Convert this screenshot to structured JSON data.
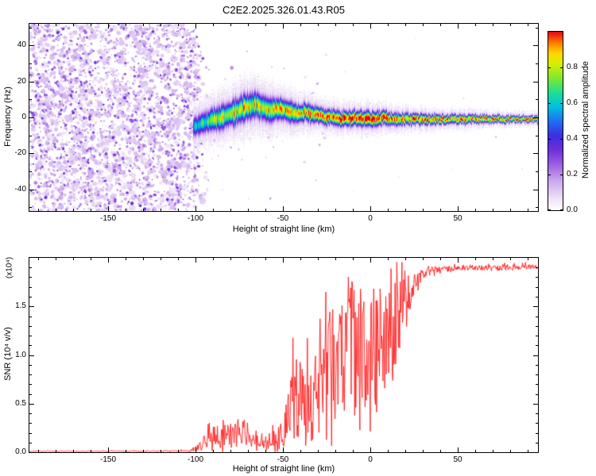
{
  "chart_data": [
    {
      "type": "heatmap",
      "name": "spectrogram",
      "title": "C2E2.2025.326.01.43.R05",
      "xlabel": "Height of straight line (km)",
      "ylabel": "Frequency (Hz)",
      "xlim": [
        -195,
        96
      ],
      "ylim": [
        -52,
        52
      ],
      "xticks": {
        "values": [
          -150,
          -100,
          -50,
          0,
          50
        ],
        "labels": [
          "-150",
          "-100",
          "-50",
          "0",
          "50"
        ]
      },
      "yticks": {
        "values": [
          -40,
          -20,
          0,
          20,
          40
        ],
        "labels": [
          "-40",
          "-20",
          "0",
          "20",
          "40"
        ]
      },
      "xminor": 10,
      "yminor": 10,
      "grid": false,
      "colorbar": {
        "label": "Normalized spectral amplitude",
        "range": [
          0,
          1
        ],
        "ticks": [
          {
            "v": 0.0,
            "label": "0.0"
          },
          {
            "v": 0.2,
            "label": "0.2"
          },
          {
            "v": 0.4,
            "label": "0.4"
          },
          {
            "v": 0.6,
            "label": "0.6"
          },
          {
            "v": 0.8,
            "label": "0.8"
          }
        ]
      },
      "colormap": [
        {
          "t": 0.0,
          "c": "#ffffff"
        },
        {
          "t": 0.06,
          "c": "#efe4f8"
        },
        {
          "t": 0.16,
          "c": "#cda9ee"
        },
        {
          "t": 0.26,
          "c": "#9a5ce2"
        },
        {
          "t": 0.34,
          "c": "#6a2fd8"
        },
        {
          "t": 0.42,
          "c": "#3b2fe0"
        },
        {
          "t": 0.5,
          "c": "#2070f0"
        },
        {
          "t": 0.58,
          "c": "#00c0e0"
        },
        {
          "t": 0.66,
          "c": "#20df90"
        },
        {
          "t": 0.74,
          "c": "#80e830"
        },
        {
          "t": 0.82,
          "c": "#d8ee00"
        },
        {
          "t": 0.88,
          "c": "#ffd800"
        },
        {
          "t": 0.94,
          "c": "#ff7800"
        },
        {
          "t": 1.0,
          "c": "#e30613"
        }
      ],
      "noise_region": {
        "x_start": -195,
        "x_end": -100,
        "amp_range": [
          0.04,
          0.35
        ]
      },
      "signal_band": {
        "x": [
          -102,
          -97,
          -93,
          -89,
          -85,
          -81,
          -77,
          -73,
          -69,
          -65,
          -61,
          -57,
          -53,
          -49,
          -45,
          -41,
          -37,
          -33,
          -29,
          -25,
          -21,
          -17,
          -13,
          -9,
          -5,
          -1,
          3,
          7,
          11,
          15,
          20,
          30,
          40,
          50,
          60,
          70,
          80,
          90,
          96
        ],
        "center_hz": [
          -6,
          -4,
          -2,
          -1,
          0,
          2,
          3,
          5,
          6,
          7,
          5,
          4,
          5,
          4,
          3,
          2,
          3,
          2,
          1,
          0,
          0,
          -1,
          -1,
          0,
          -1,
          -1,
          -1,
          0,
          -1,
          -1,
          -1,
          -1,
          -1,
          -1,
          -1,
          -1,
          -1,
          -1,
          -1
        ],
        "width_hz": [
          7,
          7,
          7,
          8,
          8,
          8,
          9,
          9,
          9,
          8,
          8,
          8,
          7,
          7,
          7,
          6,
          6,
          6,
          5,
          5,
          5,
          5,
          5,
          5,
          5,
          5,
          5,
          4.5,
          4.5,
          4,
          4,
          3.5,
          3.2,
          3,
          2.8,
          2.6,
          2.4,
          2.2,
          2.2
        ],
        "peak_amp": [
          0.55,
          0.65,
          0.7,
          0.75,
          0.8,
          0.8,
          0.85,
          0.85,
          0.85,
          0.85,
          0.8,
          0.85,
          0.85,
          0.9,
          0.9,
          0.9,
          0.9,
          0.95,
          0.95,
          1.0,
          1.0,
          1.0,
          1.05,
          1.0,
          1.05,
          1.0,
          1.05,
          1.0,
          1.0,
          0.95,
          0.95,
          0.95,
          0.92,
          0.92,
          0.9,
          0.9,
          0.9,
          0.9,
          0.9
        ]
      }
    },
    {
      "type": "line",
      "name": "snr",
      "xlabel": "Height of straight line (km)",
      "ylabel": "SNR (10⁴ v/v)",
      "scale_note": "(x10⁴)",
      "xlim": [
        -195,
        96
      ],
      "ylim": [
        0,
        2.0
      ],
      "xticks": {
        "values": [
          -150,
          -100,
          -50,
          0,
          50
        ],
        "labels": [
          "-150",
          "-100",
          "-50",
          "0",
          "50"
        ]
      },
      "yticks": {
        "values": [
          0,
          0.5,
          1.0,
          1.5
        ],
        "labels": [
          "0.0",
          "0.5",
          "1.0",
          "1.5"
        ]
      },
      "xminor": 10,
      "yminor": 0.1,
      "grid": false,
      "color": "#ff1a1a",
      "profile": {
        "x": [
          -195,
          -120,
          -103,
          -99,
          -95,
          -91,
          -87,
          -83,
          -79,
          -75,
          -71,
          -67,
          -63,
          -59,
          -55,
          -51,
          -48,
          -45,
          -42,
          -39,
          -36,
          -33,
          -30,
          -27,
          -24,
          -21,
          -18,
          -15,
          -12,
          -9,
          -6,
          -3,
          0,
          3,
          6,
          9,
          12,
          15,
          18,
          21,
          24,
          27,
          30,
          35,
          40,
          50,
          60,
          70,
          80,
          90,
          96
        ],
        "mean": [
          0.01,
          0.01,
          0.015,
          0.03,
          0.08,
          0.12,
          0.15,
          0.18,
          0.16,
          0.2,
          0.18,
          0.15,
          0.12,
          0.1,
          0.12,
          0.15,
          0.25,
          0.45,
          0.55,
          0.5,
          0.45,
          0.5,
          0.6,
          0.7,
          0.8,
          0.85,
          0.95,
          1.0,
          1.05,
          0.95,
          1.0,
          1.05,
          1.0,
          1.05,
          1.1,
          1.15,
          1.2,
          1.3,
          1.45,
          1.6,
          1.7,
          1.78,
          1.83,
          1.86,
          1.88,
          1.89,
          1.9,
          1.89,
          1.9,
          1.91,
          1.9
        ],
        "noise": [
          0.004,
          0.006,
          0.01,
          0.04,
          0.09,
          0.12,
          0.14,
          0.16,
          0.14,
          0.16,
          0.15,
          0.12,
          0.09,
          0.08,
          0.1,
          0.14,
          0.25,
          0.4,
          0.45,
          0.42,
          0.4,
          0.45,
          0.5,
          0.55,
          0.62,
          0.65,
          0.7,
          0.72,
          0.75,
          0.72,
          0.72,
          0.72,
          0.7,
          0.68,
          0.62,
          0.58,
          0.52,
          0.45,
          0.35,
          0.25,
          0.16,
          0.1,
          0.06,
          0.045,
          0.035,
          0.03,
          0.03,
          0.03,
          0.028,
          0.028,
          0.028
        ]
      }
    }
  ]
}
